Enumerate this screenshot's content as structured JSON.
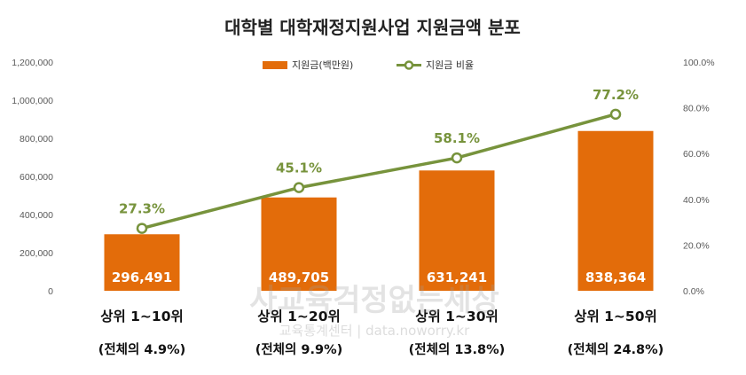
{
  "chart_data": {
    "type": "bar",
    "title": "대학별 대학재정지원사업 지원금액 분포",
    "categories": [
      [
        "상위 1~10위",
        "(전체의 4.9%)"
      ],
      [
        "상위 1~20위",
        "(전체의 9.9%)"
      ],
      [
        "상위 1~30위",
        "(전체의 13.8%)"
      ],
      [
        "상위 1~50위",
        "(전체의 24.8%)"
      ]
    ],
    "series": [
      {
        "name": "지원금(백만원)",
        "type": "bar",
        "axis": "left",
        "color": "#E36C0A",
        "values": [
          296491,
          489705,
          631241,
          838364
        ],
        "labels": [
          "296,491",
          "489,705",
          "631,241",
          "838,364"
        ]
      },
      {
        "name": "지원금 비율",
        "type": "line",
        "axis": "right",
        "color": "#77933C",
        "values": [
          27.3,
          45.1,
          58.1,
          77.2
        ],
        "labels": [
          "27.3%",
          "45.1%",
          "58.1%",
          "77.2%"
        ]
      }
    ],
    "y_left": {
      "ylim": [
        0,
        1200000
      ],
      "ticks": [
        "0",
        "200,000",
        "400,000",
        "600,000",
        "800,000",
        "1,000,000",
        "1,200,000"
      ]
    },
    "y_right": {
      "ylim": [
        0,
        100
      ],
      "ticks": [
        "0.0%",
        "20.0%",
        "40.0%",
        "60.0%",
        "80.0%",
        "100.0%"
      ]
    },
    "legend_position": "top-center",
    "grid": false
  },
  "watermark": {
    "main": "사교육걱정없는세상",
    "sub": "교육통계센터 | data.noworry.kr"
  }
}
